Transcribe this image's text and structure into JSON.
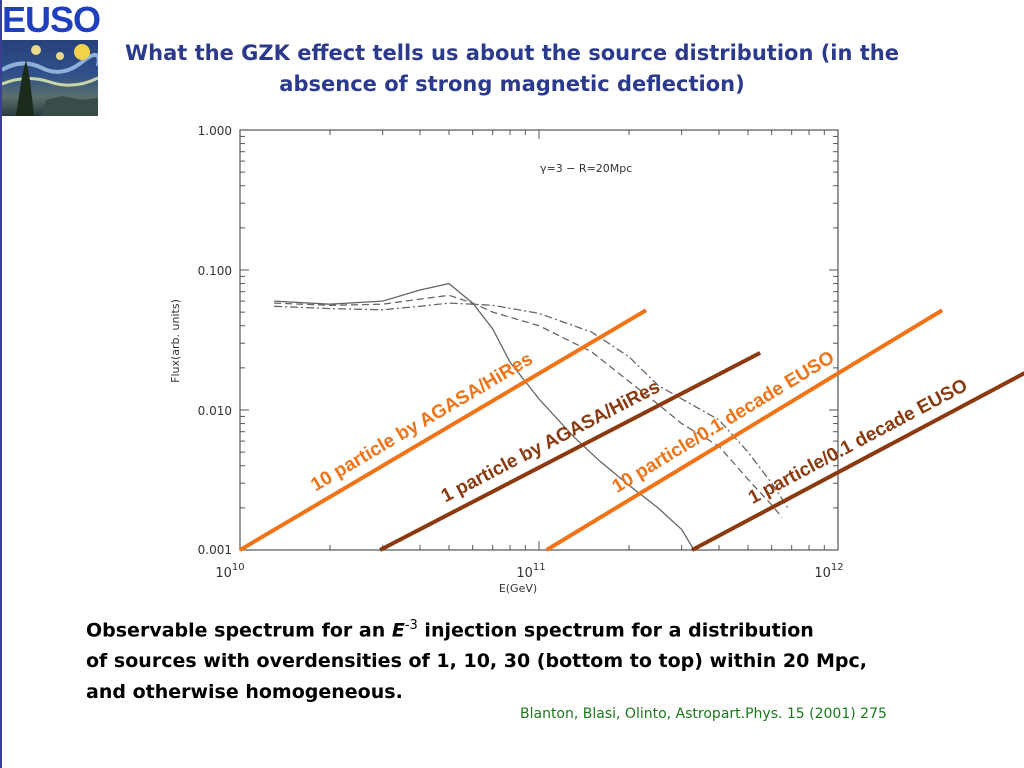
{
  "logo": {
    "text": "EUSO",
    "art_icon": "starry-night-painting-icon"
  },
  "slide": {
    "title_line1": "What the GZK effect tells us about the source distribution (in the",
    "title_line2": "absence of strong magnetic deflection)",
    "caption_line1_before": "Observable spectrum for an ",
    "caption_symbol": "E",
    "caption_exponent": "-3",
    "caption_line1_after": " injection spectrum for a distribution",
    "caption_line2": "of sources with overdensities of 1, 10, 30 (bottom to top) within 20 Mpc,",
    "caption_line3": "and otherwise homogeneous.",
    "reference": "Blanton, Blasi, Olinto, Astropart.Phys. 15 (2001) 275"
  },
  "chart_data": {
    "type": "line",
    "xlabel": "E(GeV)",
    "ylabel": "Flux(arb. units)",
    "x_scale": "log",
    "y_scale": "log",
    "xlim": [
      10000000000.0,
      1000000000000.0
    ],
    "ylim": [
      0.001,
      1.0
    ],
    "x_ticks": [
      {
        "value": 10000000000.0,
        "base": "10",
        "exp": "10"
      },
      {
        "value": 100000000000.0,
        "base": "10",
        "exp": "11"
      },
      {
        "value": 1000000000000.0,
        "base": "10",
        "exp": "12"
      }
    ],
    "y_ticks": [
      {
        "value": 1.0,
        "label": "1.000"
      },
      {
        "value": 0.1,
        "label": "0.100"
      },
      {
        "value": 0.01,
        "label": "0.010"
      },
      {
        "value": 0.001,
        "label": "0.001"
      }
    ],
    "annotation": "γ=3 − R=20Mpc",
    "series": [
      {
        "style": "solid",
        "points": [
          [
            13000000000.0,
            0.06
          ],
          [
            20000000000.0,
            0.057
          ],
          [
            30000000000.0,
            0.06
          ],
          [
            40000000000.0,
            0.072
          ],
          [
            50000000000.0,
            0.08
          ],
          [
            60000000000.0,
            0.058
          ],
          [
            70000000000.0,
            0.038
          ],
          [
            80000000000.0,
            0.022
          ],
          [
            100000000000.0,
            0.012
          ],
          [
            130000000000.0,
            0.0065
          ],
          [
            160000000000.0,
            0.0043
          ],
          [
            200000000000.0,
            0.0029
          ],
          [
            250000000000.0,
            0.002
          ],
          [
            300000000000.0,
            0.0014
          ],
          [
            330000000000.0,
            0.001
          ]
        ]
      },
      {
        "style": "dashed",
        "points": [
          [
            13000000000.0,
            0.058
          ],
          [
            20000000000.0,
            0.056
          ],
          [
            30000000000.0,
            0.057
          ],
          [
            40000000000.0,
            0.062
          ],
          [
            50000000000.0,
            0.066
          ],
          [
            60000000000.0,
            0.058
          ],
          [
            70000000000.0,
            0.05
          ],
          [
            100000000000.0,
            0.04
          ],
          [
            150000000000.0,
            0.026
          ],
          [
            200000000000.0,
            0.016
          ],
          [
            250000000000.0,
            0.011
          ],
          [
            300000000000.0,
            0.008
          ],
          [
            400000000000.0,
            0.0055
          ],
          [
            500000000000.0,
            0.0032
          ],
          [
            600000000000.0,
            0.0021
          ],
          [
            650000000000.0,
            0.0017
          ]
        ]
      },
      {
        "style": "dash-dot",
        "points": [
          [
            13000000000.0,
            0.055
          ],
          [
            20000000000.0,
            0.053
          ],
          [
            30000000000.0,
            0.052
          ],
          [
            40000000000.0,
            0.055
          ],
          [
            50000000000.0,
            0.058
          ],
          [
            60000000000.0,
            0.057
          ],
          [
            70000000000.0,
            0.056
          ],
          [
            100000000000.0,
            0.049
          ],
          [
            150000000000.0,
            0.036
          ],
          [
            200000000000.0,
            0.024
          ],
          [
            250000000000.0,
            0.015
          ],
          [
            300000000000.0,
            0.012
          ],
          [
            400000000000.0,
            0.0085
          ],
          [
            500000000000.0,
            0.005
          ],
          [
            600000000000.0,
            0.003
          ],
          [
            680000000000.0,
            0.002
          ]
        ]
      }
    ],
    "overlay_lines": [
      {
        "label": "10 particle by AGASA/HiRes",
        "color": "#f07417",
        "x": [
          10000000000.0,
          228000000000.0
        ],
        "y": [
          0.001,
          0.0516
        ]
      },
      {
        "label": "1 particle by AGASA/HiRes",
        "color": "#8b3a0f",
        "x": [
          29400000000.0,
          549000000000.0
        ],
        "y": [
          0.001,
          0.0256
        ]
      },
      {
        "label": "10 particle/0.1 decade  EUSO",
        "color": "#f07417",
        "x": [
          106000000000.0,
          2230000000000.0
        ],
        "y": [
          0.001,
          0.0516
        ]
      },
      {
        "label": "1 particle/0.1 decade EUSO",
        "color": "#8b3a0f",
        "x": [
          325000000000.0,
          5640000000000.0
        ],
        "y": [
          0.001,
          0.0256
        ]
      }
    ]
  }
}
